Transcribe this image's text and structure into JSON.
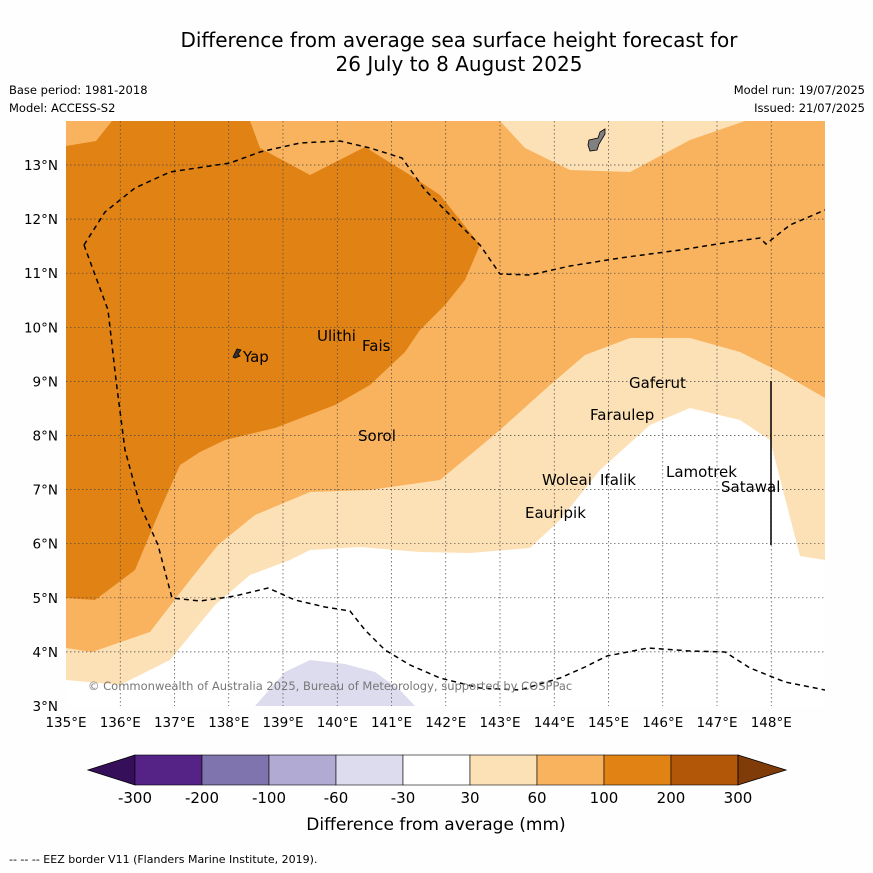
{
  "title_line1": "Difference from average sea surface height forecast for",
  "title_line2": "26 July to 8 August 2025",
  "base_period": "Base period: 1981-2018",
  "model": "Model: ACCESS-S2",
  "model_run": "Model run: 19/07/2025",
  "issued": "Issued: 21/07/2025",
  "copyright": "© Commonwealth of Australia 2025, Bureau of Meteorology, supported by COSPPac",
  "footer": "--  --  -- EEZ border V11 (Flanders Marine Institute, 2019).",
  "colorbar_title": "Difference from average (mm)",
  "lon_labels": [
    "135°E",
    "136°E",
    "137°E",
    "138°E",
    "139°E",
    "140°E",
    "141°E",
    "142°E",
    "143°E",
    "144°E",
    "145°E",
    "146°E",
    "147°E",
    "148°E"
  ],
  "lat_labels": [
    "3°N",
    "4°N",
    "5°N",
    "6°N",
    "7°N",
    "8°N",
    "9°N",
    "10°N",
    "11°N",
    "12°N",
    "13°N"
  ],
  "colorbar": {
    "ticks": [
      "-300",
      "-200",
      "-100",
      "-60",
      "-30",
      "30",
      "60",
      "100",
      "200",
      "300"
    ],
    "colors": [
      "#360f5a",
      "#542385",
      "#7f74ad",
      "#b1abd3",
      "#dcdcee",
      "#ffffff",
      "#fde1b6",
      "#f9b35e",
      "#e08214",
      "#b25608",
      "#7f3b08"
    ]
  },
  "places": [
    {
      "name": "Ulithi"
    },
    {
      "name": "Fais"
    },
    {
      "name": "Yap"
    },
    {
      "name": "Sorol"
    },
    {
      "name": "Gaferut"
    },
    {
      "name": "Faraulep"
    },
    {
      "name": "Lamotrek"
    },
    {
      "name": "Woleai"
    },
    {
      "name": "Ifalik"
    },
    {
      "name": "Satawal"
    },
    {
      "name": "Eauripik"
    }
  ]
}
